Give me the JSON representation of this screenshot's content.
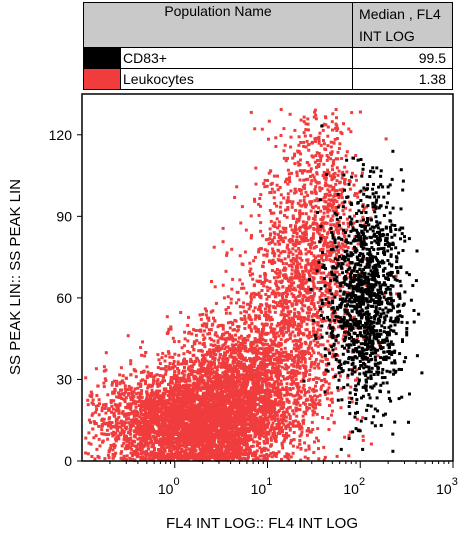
{
  "table": {
    "col_name": "Population Name",
    "col_median_line1": "Median , FL4",
    "col_median_line2": "INT LOG",
    "rows": [
      {
        "name": "CD83+",
        "value": "99.5",
        "color": "#000000"
      },
      {
        "name": "Leukocytes",
        "value": "1.38",
        "color": "#f03c3c"
      }
    ]
  },
  "chart_data": {
    "type": "scatter",
    "xlabel": "FL4 INT LOG:: FL4 INT LOG",
    "ylabel": "SS PEAK LIN:: SS PEAK LIN",
    "x_scale": "log",
    "xlim": [
      0.1,
      1000
    ],
    "ylim": [
      0,
      135
    ],
    "x_ticks": [
      {
        "base": "10",
        "exp": "0"
      },
      {
        "base": "10",
        "exp": "1"
      },
      {
        "base": "10",
        "exp": "2"
      },
      {
        "base": "10",
        "exp": "3"
      }
    ],
    "y_ticks": [
      "0",
      "30",
      "60",
      "90",
      "120"
    ],
    "series": [
      {
        "name": "Leukocytes",
        "color": "#f03c3c",
        "clusters": [
          {
            "x_center": 1.5,
            "x_spread": 0.45,
            "y_center": 15,
            "y_spread": 9,
            "n": 4500
          },
          {
            "x_center": 5,
            "x_spread": 0.35,
            "y_center": 30,
            "y_spread": 12,
            "n": 1800
          },
          {
            "x_center": 20,
            "x_spread": 0.3,
            "y_center": 60,
            "y_spread": 25,
            "n": 1400
          },
          {
            "x_center": 40,
            "x_spread": 0.2,
            "y_center": 95,
            "y_spread": 20,
            "n": 500
          }
        ]
      },
      {
        "name": "CD83+",
        "color": "#000000",
        "clusters": [
          {
            "x_center": 110,
            "x_spread": 0.2,
            "y_center": 60,
            "y_spread": 20,
            "n": 1300
          }
        ]
      }
    ]
  }
}
